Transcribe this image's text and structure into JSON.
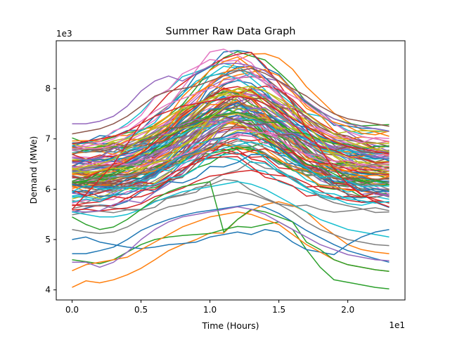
{
  "chart_data": {
    "type": "line",
    "title": "Summer Raw Data Graph",
    "xlabel": "Time (Hours)",
    "ylabel": "Demand (MWe)",
    "x_offset_label": "1e1",
    "y_offset_label": "1e3",
    "xlim": [
      -1.15,
      24.15
    ],
    "ylim": [
      3800,
      8950
    ],
    "x_ticks": [
      0,
      5,
      10,
      15,
      20
    ],
    "x_tick_labels": [
      "0.0",
      "0.5",
      "1.0",
      "1.5",
      "2.0"
    ],
    "y_ticks": [
      4000,
      5000,
      6000,
      7000,
      8000
    ],
    "y_tick_labels": [
      "4",
      "5",
      "6",
      "7",
      "8"
    ],
    "grid": false,
    "legend": "none",
    "x": [
      0,
      1,
      2,
      3,
      4,
      5,
      6,
      7,
      8,
      9,
      10,
      11,
      12,
      13,
      14,
      15,
      16,
      17,
      18,
      19,
      20,
      21,
      22,
      23
    ],
    "series_note": "approximately 120 daily demand curves",
    "colors": [
      "#1f77b4",
      "#ff7f0e",
      "#2ca02c",
      "#d62728",
      "#9467bd",
      "#8c564b",
      "#e377c2",
      "#7f7f7f",
      "#bcbd22",
      "#17becf"
    ],
    "series": [
      {
        "values": [
          4720,
          4720,
          4780,
          4850,
          5000,
          5180,
          5300,
          5400,
          5480,
          5540,
          5580,
          5620,
          5660,
          5700,
          5640,
          5520,
          5350,
          5180,
          5040,
          4900,
          4780,
          4700,
          4620,
          4550
        ]
      },
      {
        "values": [
          4050,
          4180,
          4140,
          4200,
          4300,
          4430,
          4600,
          4780,
          4900,
          5000,
          5130,
          5130,
          5400,
          5580,
          5700,
          5750,
          5680,
          5550,
          5300,
          5100,
          4900,
          4800,
          4750,
          4720
        ]
      },
      {
        "values": [
          4600,
          4560,
          4520,
          4600,
          4750,
          4900,
          5000,
          5050,
          5080,
          5100,
          5120,
          5200,
          5260,
          5240,
          5300,
          5350,
          5200,
          4800,
          4450,
          4200,
          4150,
          4100,
          4050,
          4020
        ]
      },
      {
        "values": [
          5600,
          5900,
          6200,
          6500,
          6900,
          7300,
          7600,
          7900,
          8100,
          8300,
          8450,
          8600,
          8680,
          8720,
          8450,
          8100,
          7700,
          7200,
          6800,
          6400,
          6100,
          5900,
          5750,
          5650
        ]
      },
      {
        "values": [
          7300,
          7300,
          7350,
          7450,
          7650,
          7950,
          8150,
          8250,
          8150,
          8300,
          8450,
          8500,
          8500,
          8450,
          8350,
          8150,
          7950,
          7750,
          7550,
          7400,
          7300,
          7250,
          7200,
          7150
        ]
      },
      {
        "values": [
          7100,
          7150,
          7200,
          7300,
          7450,
          7650,
          7850,
          7950,
          8000,
          8050,
          8150,
          8250,
          8350,
          8400,
          8300,
          8150,
          8000,
          7850,
          7650,
          7500,
          7400,
          7350,
          7300,
          7250
        ]
      },
      {
        "values": [
          6800,
          6850,
          6900,
          7000,
          7150,
          7350,
          7550,
          7700,
          7800,
          7900,
          8000,
          8100,
          8200,
          8250,
          8150,
          8000,
          7850,
          7700,
          7500,
          7300,
          7150,
          7050,
          7000,
          6950
        ]
      },
      {
        "values": [
          5200,
          5150,
          5120,
          5150,
          5250,
          5400,
          5550,
          5650,
          5700,
          5780,
          5850,
          5900,
          5950,
          5900,
          5800,
          5700,
          5550,
          5350,
          5200,
          5100,
          5000,
          4950,
          4900,
          4880
        ]
      },
      {
        "values": [
          6400,
          6450,
          6500,
          6600,
          6800,
          7000,
          7250,
          7450,
          7600,
          7700,
          7800,
          7900,
          8000,
          8050,
          7950,
          7800,
          7650,
          7500,
          7300,
          7100,
          6950,
          6850,
          6800,
          6750
        ]
      },
      {
        "values": [
          5550,
          5500,
          5450,
          5450,
          5500,
          5600,
          5750,
          5850,
          5950,
          6000,
          6050,
          6100,
          6150,
          6100,
          6000,
          5850,
          5700,
          5550,
          5400,
          5300,
          5200,
          5150,
          5100,
          5050
        ]
      },
      {
        "values": [
          5000,
          5050,
          4950,
          4900,
          4850,
          4820,
          4850,
          4900,
          4920,
          4950,
          5050,
          5100,
          5150,
          5100,
          5200,
          5150,
          4950,
          4800,
          4750,
          4700,
          4900,
          5050,
          5150,
          5200
        ]
      },
      {
        "values": [
          4380,
          4500,
          4550,
          4600,
          4650,
          4800,
          4950,
          5100,
          5250,
          5350,
          5450,
          5500,
          5550,
          5500,
          5400,
          5300,
          5100,
          4900,
          4750,
          4600,
          4500,
          4450,
          4400,
          4370
        ]
      },
      {
        "values": [
          5450,
          5300,
          5200,
          5250,
          5400,
          5600,
          5800,
          5950,
          6050,
          6100,
          6150,
          5150,
          5400,
          5600,
          5550,
          5450,
          5350,
          4950,
          4800,
          4600,
          4500,
          4450,
          4400,
          4370
        ]
      },
      {
        "values": [
          6900,
          6950,
          7000,
          7050,
          7150,
          7300,
          7450,
          7550,
          7650,
          7700,
          7750,
          7800,
          7850,
          7800,
          7700,
          7550,
          7400,
          7250,
          7100,
          6950,
          6850,
          6800,
          6750,
          6700
        ]
      },
      {
        "values": [
          4550,
          4550,
          4450,
          4550,
          4750,
          5000,
          5200,
          5350,
          5450,
          5500,
          5550,
          5600,
          5650,
          5600,
          5500,
          5350,
          5200,
          5050,
          4900,
          4800,
          4700,
          4650,
          4600,
          4580
        ]
      }
    ]
  }
}
